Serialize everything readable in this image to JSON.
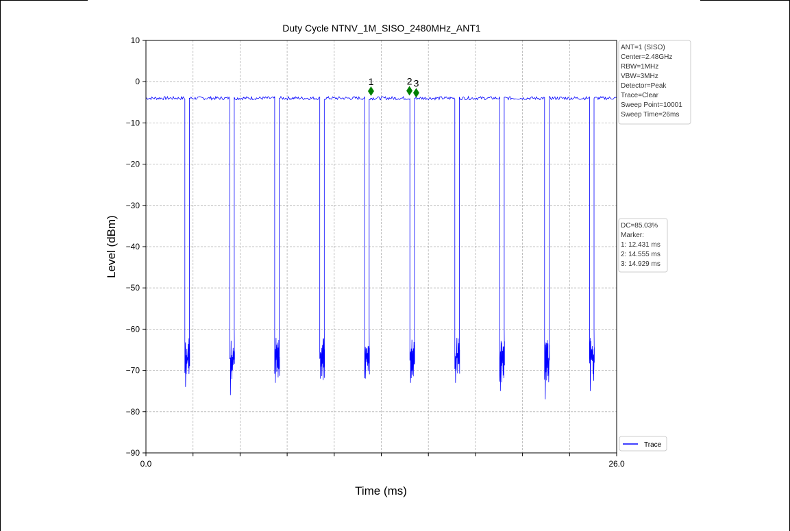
{
  "chart_data": {
    "type": "line",
    "title": "Duty Cycle NTNV_1M_SISO_2480MHz_ANT1",
    "xlabel": "Time (ms)",
    "ylabel": "Level (dBm)",
    "xlim": [
      0.0,
      26.0
    ],
    "ylim": [
      -90,
      10
    ],
    "x_tick_labels": [
      "0.0",
      "26.0"
    ],
    "x_minor_ticks": [
      2.6,
      5.2,
      7.8,
      10.4,
      13.0,
      15.6,
      18.2,
      20.8,
      23.4
    ],
    "y_ticks": [
      10,
      0,
      -10,
      -20,
      -30,
      -40,
      -50,
      -60,
      -70,
      -80,
      -90
    ],
    "y_tick_labels": [
      "10",
      "0",
      "−10",
      "−20",
      "−30",
      "−40",
      "−50",
      "−60",
      "−70",
      "−80",
      "−90"
    ],
    "grid": true,
    "legend_placement": "lower-right",
    "series": [
      {
        "name": "Trace",
        "color": "#0000ff",
        "on_level_dbm": -4,
        "off_level_dbm": -67,
        "off_intervals_ms": [
          [
            2.15,
            2.4
          ],
          [
            4.63,
            4.88
          ],
          [
            7.11,
            7.36
          ],
          [
            9.6,
            9.85
          ],
          [
            12.08,
            12.33
          ],
          [
            14.58,
            14.83
          ],
          [
            17.06,
            17.31
          ],
          [
            19.54,
            19.79
          ],
          [
            22.02,
            22.27
          ],
          [
            24.5,
            24.75
          ]
        ],
        "off_minimum_dbm": [
          -74,
          -76,
          -73,
          -72,
          -72,
          -73,
          -73,
          -75,
          -77,
          -75
        ]
      }
    ],
    "markers": [
      {
        "label": "1",
        "x": 12.431,
        "y": -2.3
      },
      {
        "label": "2",
        "x": 14.555,
        "y": -2.2
      },
      {
        "label": "3",
        "x": 14.929,
        "y": -2.7
      }
    ],
    "marker_color": "#008000",
    "info_box_top": [
      "ANT=1 (SISO)",
      "Center=2.48GHz",
      "RBW=1MHz",
      "VBW=3MHz",
      "Detector=Peak",
      "Trace=Clear",
      "Sweep Point=10001",
      "Sweep Time=26ms"
    ],
    "info_box_mid": [
      "DC=85.03%",
      "Marker:",
      "1: 12.431 ms",
      "2: 14.555 ms",
      "3: 14.929 ms"
    ]
  }
}
